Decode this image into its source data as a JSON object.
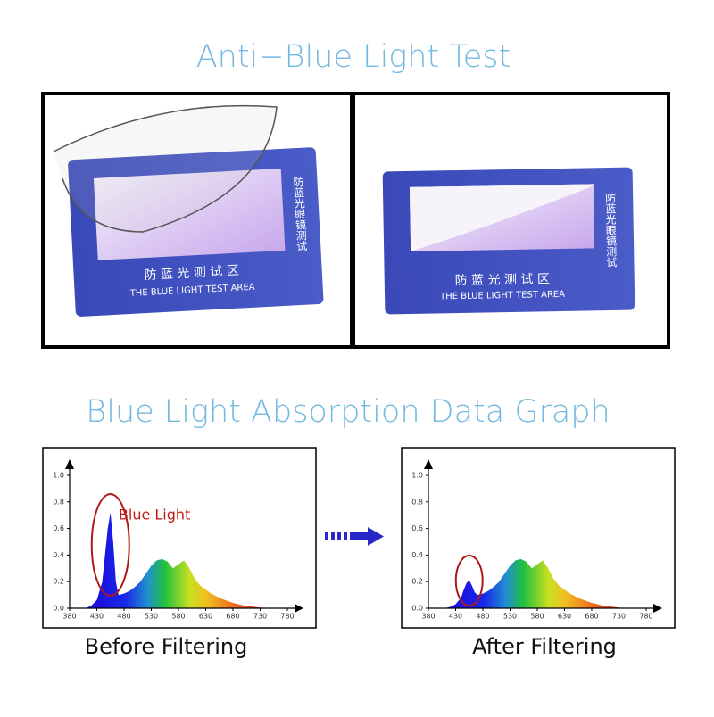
{
  "header": {
    "title": "Anti−Blue Light Test"
  },
  "photos": [
    {
      "side_text": "防蓝光眼镜测试",
      "area_text": "防 蓝 光 测 试 区",
      "area_text_en": "THE BLUE LIGHT TEST AREA"
    },
    {
      "side_text": "防蓝光眼镜测试",
      "area_text": "防 蓝 光 测 试 区",
      "area_text_en": "THE BLUE LIGHT TEST AREA"
    }
  ],
  "graph_title": "Blue Light Absorption Data Graph",
  "chart_data": [
    {
      "type": "area",
      "caption": "Before Filtering",
      "annotation": "Blue Light",
      "x": [
        410,
        420,
        430,
        440,
        445,
        450,
        455,
        460,
        465,
        470,
        480,
        490,
        500,
        510,
        520,
        530,
        540,
        550,
        560,
        570,
        580,
        590,
        600,
        610,
        620,
        640,
        660,
        680,
        700,
        720,
        740
      ],
      "values": [
        0,
        0.02,
        0.06,
        0.2,
        0.4,
        0.6,
        0.72,
        0.5,
        0.2,
        0.1,
        0.11,
        0.13,
        0.16,
        0.2,
        0.26,
        0.32,
        0.36,
        0.37,
        0.35,
        0.3,
        0.33,
        0.36,
        0.3,
        0.22,
        0.17,
        0.11,
        0.07,
        0.04,
        0.02,
        0.01,
        0
      ],
      "xlim": [
        380,
        780
      ],
      "ylim": [
        0,
        1
      ],
      "xticks": [
        380,
        430,
        480,
        530,
        580,
        630,
        680,
        730,
        780
      ],
      "yticks": [
        {
          "value": 0,
          "label": "0.0"
        },
        {
          "value": 0.2,
          "label": "0.2"
        },
        {
          "value": 0.4,
          "label": "0.4"
        },
        {
          "value": 0.6,
          "label": "0.6"
        },
        {
          "value": 0.8,
          "label": "0.8"
        },
        {
          "value": 1,
          "label": "1.0"
        }
      ]
    },
    {
      "type": "area",
      "caption": "After Filtering",
      "x": [
        410,
        420,
        430,
        440,
        445,
        450,
        455,
        460,
        465,
        470,
        480,
        490,
        500,
        510,
        520,
        530,
        540,
        550,
        560,
        570,
        580,
        590,
        600,
        610,
        620,
        640,
        660,
        680,
        700,
        720,
        740
      ],
      "values": [
        0,
        0.01,
        0.03,
        0.08,
        0.14,
        0.19,
        0.21,
        0.17,
        0.12,
        0.1,
        0.11,
        0.13,
        0.16,
        0.2,
        0.26,
        0.32,
        0.36,
        0.37,
        0.35,
        0.3,
        0.33,
        0.36,
        0.3,
        0.22,
        0.17,
        0.11,
        0.07,
        0.04,
        0.02,
        0.01,
        0
      ],
      "xlim": [
        380,
        780
      ],
      "ylim": [
        0,
        1
      ],
      "xticks": [
        380,
        430,
        480,
        530,
        580,
        630,
        680,
        730,
        780
      ],
      "yticks": [
        {
          "value": 0,
          "label": "0.0"
        },
        {
          "value": 0.2,
          "label": "0.2"
        },
        {
          "value": 0.4,
          "label": "0.4"
        },
        {
          "value": 0.6,
          "label": "0.6"
        },
        {
          "value": 0.8,
          "label": "0.8"
        },
        {
          "value": 1,
          "label": "1.0"
        }
      ]
    }
  ]
}
